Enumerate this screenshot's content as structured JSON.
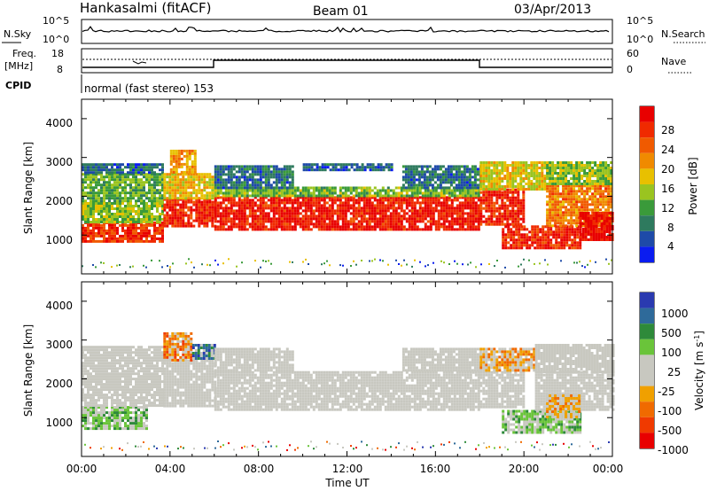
{
  "header": {
    "station": "Hankasalmi (fitACF)",
    "beam": "Beam 01",
    "date": "03/Apr/2013"
  },
  "noise_panel": {
    "left_label": "N.Sky",
    "right_label": "N.Search",
    "left_ticks": [
      "10^5",
      "10^0"
    ],
    "right_ticks": [
      "10^5",
      "10^0"
    ]
  },
  "freq_panel": {
    "left_label_1": "Freq.",
    "left_label_2": "[MHz]",
    "right_label": "Nave",
    "left_ticks": [
      "18",
      "8"
    ],
    "right_ticks": [
      "60",
      "0"
    ]
  },
  "cpid": {
    "label": "CPID",
    "value": "normal (fast stereo) 153"
  },
  "colors": {
    "power": [
      "#0a1cf0",
      "#1e4aa8",
      "#2e7a5e",
      "#3a9a3a",
      "#9ac420",
      "#e8c000",
      "#f08a00",
      "#f05a00",
      "#f02a00",
      "#e80000"
    ],
    "velocity": [
      "#2a3ab0",
      "#2e6a9a",
      "#2e8a3a",
      "#6ac43a",
      "#c8c8c0",
      "#c8c8c0",
      "#f0a000",
      "#f06a00",
      "#f03a00",
      "#e80000"
    ],
    "ground": "#c8c8c0"
  },
  "chart_data": [
    {
      "type": "heatmap",
      "name": "power",
      "ylabel": "Slant Range [km]",
      "yticks": [
        "1000",
        "2000",
        "3000",
        "4000"
      ],
      "ylim": [
        0,
        4500
      ],
      "xlim": [
        0,
        24
      ],
      "colorbar_label": "Power [dB]",
      "colorbar_ticks": [
        "28",
        "24",
        "20",
        "16",
        "12",
        "8",
        "4"
      ],
      "colorbar_range": [
        0,
        32
      ],
      "regions": [
        {
          "x0": 0.0,
          "x1": 3.7,
          "y0": 850,
          "y1": 1350,
          "level": 27
        },
        {
          "x0": 0.0,
          "x1": 3.7,
          "y0": 1350,
          "y1": 1850,
          "level": 14
        },
        {
          "x0": 0.0,
          "x1": 3.7,
          "y0": 1850,
          "y1": 2600,
          "level": 12
        },
        {
          "x0": 0.0,
          "x1": 3.7,
          "y0": 2600,
          "y1": 2850,
          "level": 6
        },
        {
          "x0": 3.7,
          "x1": 6.0,
          "y0": 1250,
          "y1": 1950,
          "level": 28
        },
        {
          "x0": 3.7,
          "x1": 6.0,
          "y0": 1950,
          "y1": 2600,
          "level": 18
        },
        {
          "x0": 4.0,
          "x1": 5.2,
          "y0": 2600,
          "y1": 3200,
          "level": 20
        },
        {
          "x0": 6.0,
          "x1": 18.0,
          "y0": 1150,
          "y1": 2000,
          "level": 29
        },
        {
          "x0": 6.0,
          "x1": 18.0,
          "y0": 2000,
          "y1": 2250,
          "level": 13
        },
        {
          "x0": 6.0,
          "x1": 9.5,
          "y0": 2250,
          "y1": 2800,
          "level": 7
        },
        {
          "x0": 14.5,
          "x1": 18.0,
          "y0": 2250,
          "y1": 2800,
          "level": 7
        },
        {
          "x0": 10.0,
          "x1": 14.0,
          "y0": 2700,
          "y1": 2850,
          "level": 6
        },
        {
          "x0": 18.0,
          "x1": 20.0,
          "y0": 1250,
          "y1": 2200,
          "level": 28
        },
        {
          "x0": 18.0,
          "x1": 21.0,
          "y0": 2200,
          "y1": 2900,
          "level": 17
        },
        {
          "x0": 19.0,
          "x1": 22.5,
          "y0": 650,
          "y1": 1250,
          "level": 28
        },
        {
          "x0": 21.0,
          "x1": 24.0,
          "y0": 1250,
          "y1": 2300,
          "level": 22
        },
        {
          "x0": 22.5,
          "x1": 24.0,
          "y0": 900,
          "y1": 1600,
          "level": 30
        },
        {
          "x0": 21.0,
          "x1": 24.0,
          "y0": 2300,
          "y1": 2900,
          "level": 14
        }
      ]
    },
    {
      "type": "heatmap",
      "name": "velocity",
      "ylabel": "Slant Range [km]",
      "yticks": [
        "1000",
        "2000",
        "3000",
        "4000"
      ],
      "ylim": [
        0,
        4500
      ],
      "xlim": [
        0,
        24
      ],
      "colorbar_label": "Velocity [m s",
      "colorbar_label_sup": "-1",
      "colorbar_label_end": "]",
      "colorbar_ticks": [
        "1000",
        "500",
        "100",
        "25",
        "-25",
        "-100",
        "-500",
        "-1000"
      ],
      "regions": [
        {
          "x0": 0.0,
          "x1": 3.0,
          "y0": 700,
          "y1": 1300,
          "level": "100"
        },
        {
          "x0": 0.0,
          "x1": 3.7,
          "y0": 1300,
          "y1": 2100,
          "level": "ground"
        },
        {
          "x0": 0.0,
          "x1": 3.7,
          "y0": 2100,
          "y1": 2850,
          "level": "ground"
        },
        {
          "x0": 3.7,
          "x1": 6.0,
          "y0": 1300,
          "y1": 2500,
          "level": "ground"
        },
        {
          "x0": 3.7,
          "x1": 5.0,
          "y0": 2500,
          "y1": 3200,
          "level": "-500"
        },
        {
          "x0": 5.0,
          "x1": 6.0,
          "y0": 2500,
          "y1": 2900,
          "level": "500"
        },
        {
          "x0": 6.0,
          "x1": 18.0,
          "y0": 1200,
          "y1": 2200,
          "level": "ground"
        },
        {
          "x0": 6.0,
          "x1": 9.5,
          "y0": 2200,
          "y1": 2800,
          "level": "ground"
        },
        {
          "x0": 14.5,
          "x1": 18.0,
          "y0": 2200,
          "y1": 2800,
          "level": "ground"
        },
        {
          "x0": 18.0,
          "x1": 20.0,
          "y0": 1300,
          "y1": 2200,
          "level": "ground"
        },
        {
          "x0": 18.0,
          "x1": 20.5,
          "y0": 2200,
          "y1": 2800,
          "level": "-100"
        },
        {
          "x0": 19.0,
          "x1": 22.5,
          "y0": 600,
          "y1": 1200,
          "level": "100"
        },
        {
          "x0": 20.5,
          "x1": 24.0,
          "y0": 1200,
          "y1": 2200,
          "level": "ground"
        },
        {
          "x0": 20.5,
          "x1": 24.0,
          "y0": 2200,
          "y1": 2900,
          "level": "ground"
        },
        {
          "x0": 21.0,
          "x1": 22.5,
          "y0": 1000,
          "y1": 1600,
          "level": "-100"
        }
      ]
    }
  ],
  "xaxis": {
    "ticks": [
      "00:00",
      "04:00",
      "08:00",
      "12:00",
      "16:00",
      "20:00",
      "00:00"
    ],
    "label": "Time UT"
  }
}
